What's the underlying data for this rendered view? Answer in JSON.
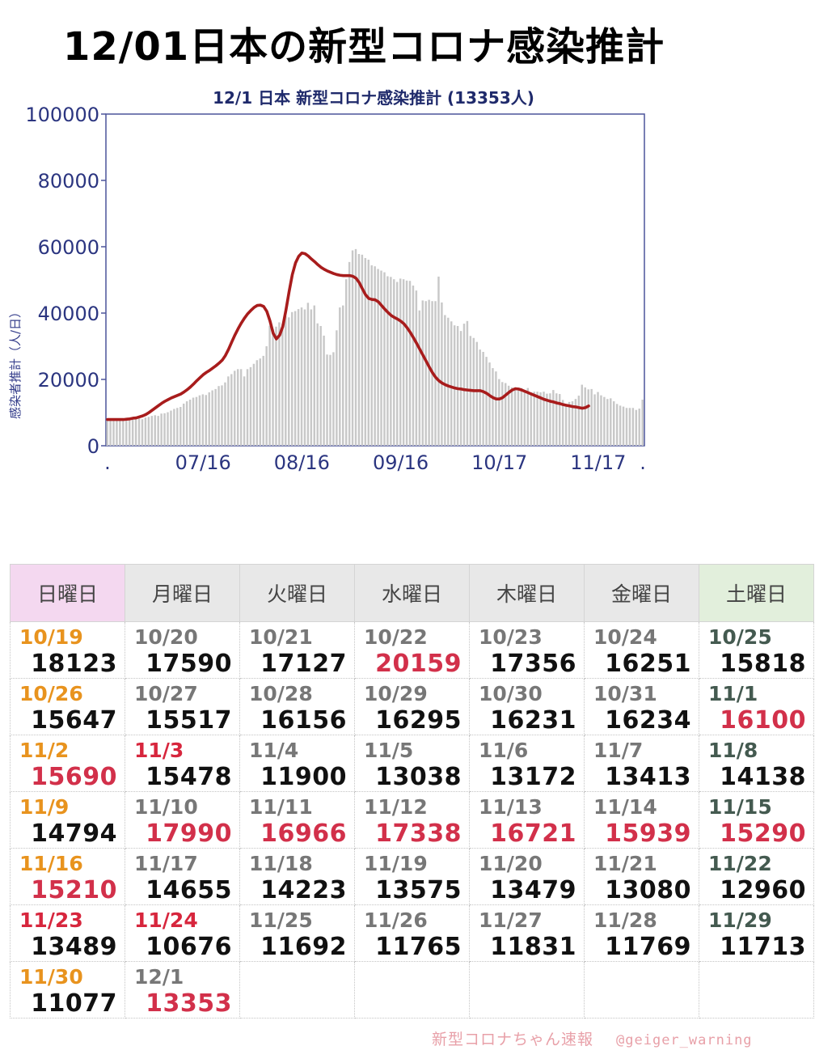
{
  "page_title": "12/01日本の新型コロナ感染推計",
  "chart_data": {
    "type": "bar",
    "title": "12/1 日本 新型コロナ感染推計 (13353人)",
    "ylabel": "感染者推計（人/日）",
    "xlabel": "",
    "ylim": [
      0,
      100000
    ],
    "yticks": [
      "0",
      "20000",
      "40000",
      "60000",
      "80000",
      "100000"
    ],
    "xticks": [
      {
        "index": 0,
        "label": "."
      },
      {
        "index": 30,
        "label": "07/16"
      },
      {
        "index": 61,
        "label": "08/16"
      },
      {
        "index": 92,
        "label": "09/16"
      },
      {
        "index": 123,
        "label": "10/17"
      },
      {
        "index": 154,
        "label": "11/17"
      },
      {
        "index": 168,
        "label": "."
      }
    ],
    "series": [
      {
        "kind": "bar",
        "color": "#c8c8c8",
        "values": [
          8000,
          7800,
          8000,
          7900,
          7700,
          8100,
          7900,
          8000,
          7800,
          8100,
          8300,
          8000,
          8500,
          8700,
          9000,
          9200,
          9000,
          9700,
          9800,
          10100,
          10600,
          11100,
          11400,
          11700,
          12700,
          13400,
          13900,
          14500,
          14700,
          15200,
          15500,
          15300,
          16100,
          16700,
          17100,
          18000,
          18200,
          19100,
          20900,
          21600,
          22600,
          23100,
          23100,
          20900,
          23100,
          23700,
          24700,
          25800,
          26300,
          27100,
          30000,
          36200,
          35100,
          35900,
          37200,
          36700,
          39100,
          38700,
          40300,
          40600,
          41200,
          41700,
          41100,
          43100,
          41100,
          42300,
          36900,
          36100,
          33200,
          27500,
          27400,
          28200,
          34800,
          41700,
          42300,
          50200,
          55400,
          58900,
          59300,
          57800,
          57600,
          56600,
          56100,
          54400,
          54100,
          53300,
          52800,
          52300,
          51100,
          50900,
          50200,
          49400,
          50400,
          50200,
          49800,
          49700,
          48300,
          46800,
          40800,
          43800,
          43600,
          44000,
          43600,
          43600,
          51000,
          43200,
          39400,
          38600,
          37500,
          36300,
          36100,
          34600,
          36800,
          37600,
          33100,
          32500,
          31300,
          29000,
          28300,
          26800,
          25100,
          23400,
          22400,
          20100,
          19200,
          18900,
          18100,
          17600,
          17100,
          17400,
          17400,
          16300,
          17400,
          16100,
          16300,
          16300,
          16100,
          16300,
          15700,
          15800,
          16800,
          15800,
          15600,
          13800,
          12000,
          13200,
          13400,
          14100,
          15100,
          18400,
          17600,
          17000,
          17100,
          15500,
          16200,
          15200,
          14700,
          14100,
          14300,
          13400,
          12600,
          12100,
          11800,
          11400,
          11400,
          11400,
          10800,
          11200,
          13900
        ]
      },
      {
        "kind": "line",
        "color": "#a81c1c",
        "values": [
          7900,
          7900,
          7900,
          7900,
          7900,
          7900,
          8000,
          8100,
          8300,
          8400,
          8700,
          9000,
          9400,
          10000,
          10700,
          11400,
          12100,
          12800,
          13400,
          13900,
          14400,
          14800,
          15200,
          15600,
          16200,
          16900,
          17700,
          18600,
          19600,
          20500,
          21400,
          22100,
          22700,
          23400,
          24100,
          24900,
          25800,
          27200,
          29100,
          31300,
          33400,
          35300,
          37000,
          38500,
          39800,
          40800,
          41700,
          42300,
          42400,
          42000,
          40500,
          37600,
          33900,
          32200,
          33300,
          35900,
          40900,
          46500,
          51600,
          55100,
          57100,
          58100,
          57900,
          57200,
          56300,
          55500,
          54600,
          53800,
          53200,
          52700,
          52300,
          51900,
          51600,
          51400,
          51300,
          51300,
          51300,
          51100,
          50500,
          49200,
          47300,
          45500,
          44400,
          44100,
          44000,
          43400,
          42300,
          41200,
          40200,
          39300,
          38700,
          38200,
          37600,
          36800,
          35600,
          34200,
          32600,
          30900,
          29100,
          27300,
          25500,
          23700,
          22000,
          20600,
          19600,
          18900,
          18400,
          18000,
          17700,
          17400,
          17200,
          17100,
          16900,
          16800,
          16700,
          16600,
          16600,
          16600,
          16300,
          15800,
          15100,
          14500,
          14100,
          14100,
          14500,
          15300,
          16100,
          16800,
          17200,
          17100,
          16800,
          16400,
          16000,
          15600,
          15200,
          14800,
          14400,
          14000,
          13700,
          13400,
          13200,
          12900,
          12700,
          12400,
          12200,
          12000,
          11800,
          11700,
          11500,
          11300,
          11500,
          12000
        ]
      }
    ]
  },
  "calendar": {
    "headers": [
      "日曜日",
      "月曜日",
      "火曜日",
      "水曜日",
      "木曜日",
      "金曜日",
      "土曜日"
    ],
    "weeks": [
      [
        {
          "date": "10/19",
          "value": "18123",
          "dc": "sun",
          "vc": "n"
        },
        {
          "date": "10/20",
          "value": "17590",
          "dc": "wk",
          "vc": "n"
        },
        {
          "date": "10/21",
          "value": "17127",
          "dc": "wk",
          "vc": "n"
        },
        {
          "date": "10/22",
          "value": "20159",
          "dc": "wk",
          "vc": "up"
        },
        {
          "date": "10/23",
          "value": "17356",
          "dc": "wk",
          "vc": "n"
        },
        {
          "date": "10/24",
          "value": "16251",
          "dc": "wk",
          "vc": "n"
        },
        {
          "date": "10/25",
          "value": "15818",
          "dc": "sat",
          "vc": "n"
        }
      ],
      [
        {
          "date": "10/26",
          "value": "15647",
          "dc": "sun",
          "vc": "n"
        },
        {
          "date": "10/27",
          "value": "15517",
          "dc": "wk",
          "vc": "n"
        },
        {
          "date": "10/28",
          "value": "16156",
          "dc": "wk",
          "vc": "n"
        },
        {
          "date": "10/29",
          "value": "16295",
          "dc": "wk",
          "vc": "n"
        },
        {
          "date": "10/30",
          "value": "16231",
          "dc": "wk",
          "vc": "n"
        },
        {
          "date": "10/31",
          "value": "16234",
          "dc": "wk",
          "vc": "n"
        },
        {
          "date": "11/1",
          "value": "16100",
          "dc": "sat",
          "vc": "up"
        }
      ],
      [
        {
          "date": "11/2",
          "value": "15690",
          "dc": "sun",
          "vc": "up"
        },
        {
          "date": "11/3",
          "value": "15478",
          "dc": "hol",
          "vc": "n"
        },
        {
          "date": "11/4",
          "value": "11900",
          "dc": "wk",
          "vc": "n"
        },
        {
          "date": "11/5",
          "value": "13038",
          "dc": "wk",
          "vc": "n"
        },
        {
          "date": "11/6",
          "value": "13172",
          "dc": "wk",
          "vc": "n"
        },
        {
          "date": "11/7",
          "value": "13413",
          "dc": "wk",
          "vc": "n"
        },
        {
          "date": "11/8",
          "value": "14138",
          "dc": "sat",
          "vc": "n"
        }
      ],
      [
        {
          "date": "11/9",
          "value": "14794",
          "dc": "sun",
          "vc": "n"
        },
        {
          "date": "11/10",
          "value": "17990",
          "dc": "wk",
          "vc": "up"
        },
        {
          "date": "11/11",
          "value": "16966",
          "dc": "wk",
          "vc": "up"
        },
        {
          "date": "11/12",
          "value": "17338",
          "dc": "wk",
          "vc": "up"
        },
        {
          "date": "11/13",
          "value": "16721",
          "dc": "wk",
          "vc": "up"
        },
        {
          "date": "11/14",
          "value": "15939",
          "dc": "wk",
          "vc": "up"
        },
        {
          "date": "11/15",
          "value": "15290",
          "dc": "sat",
          "vc": "up"
        }
      ],
      [
        {
          "date": "11/16",
          "value": "15210",
          "dc": "sun",
          "vc": "up"
        },
        {
          "date": "11/17",
          "value": "14655",
          "dc": "wk",
          "vc": "n"
        },
        {
          "date": "11/18",
          "value": "14223",
          "dc": "wk",
          "vc": "n"
        },
        {
          "date": "11/19",
          "value": "13575",
          "dc": "wk",
          "vc": "n"
        },
        {
          "date": "11/20",
          "value": "13479",
          "dc": "wk",
          "vc": "n"
        },
        {
          "date": "11/21",
          "value": "13080",
          "dc": "wk",
          "vc": "n"
        },
        {
          "date": "11/22",
          "value": "12960",
          "dc": "sat",
          "vc": "n"
        }
      ],
      [
        {
          "date": "11/23",
          "value": "13489",
          "dc": "hol",
          "vc": "n"
        },
        {
          "date": "11/24",
          "value": "10676",
          "dc": "hol",
          "vc": "n"
        },
        {
          "date": "11/25",
          "value": "11692",
          "dc": "wk",
          "vc": "n"
        },
        {
          "date": "11/26",
          "value": "11765",
          "dc": "wk",
          "vc": "n"
        },
        {
          "date": "11/27",
          "value": "11831",
          "dc": "wk",
          "vc": "n"
        },
        {
          "date": "11/28",
          "value": "11769",
          "dc": "wk",
          "vc": "n"
        },
        {
          "date": "11/29",
          "value": "11713",
          "dc": "sat",
          "vc": "n"
        }
      ],
      [
        {
          "date": "11/30",
          "value": "11077",
          "dc": "sun",
          "vc": "n"
        },
        {
          "date": "12/1",
          "value": "13353",
          "dc": "wk",
          "vc": "up"
        },
        null,
        null,
        null,
        null,
        null
      ]
    ]
  },
  "footer": {
    "brand": "新型コロナちゃん速報",
    "handle": "@geiger_warning"
  }
}
